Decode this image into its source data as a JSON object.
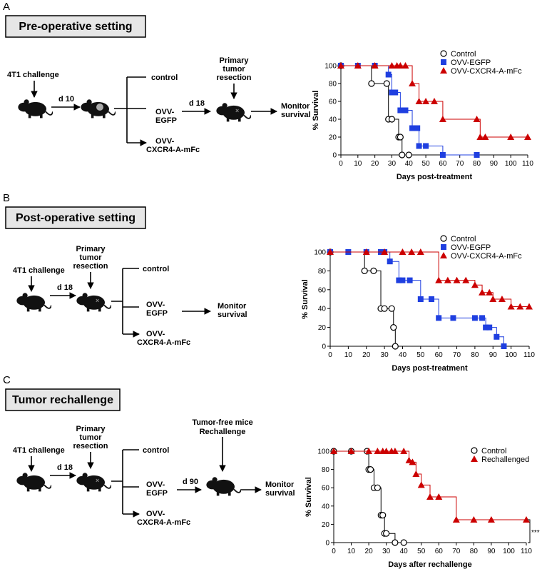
{
  "panels": [
    {
      "label": "A",
      "title": "Pre-operative setting",
      "challenge": "4T1 challenge",
      "interval1": "d 10",
      "arms": [
        [
          "control"
        ],
        [
          "OVV-",
          "EGFP"
        ],
        [
          "OVV-",
          "CXCR4-A-mFc"
        ]
      ],
      "interval2": "d 18",
      "resection": [
        "Primary",
        "tumor",
        "resection"
      ],
      "outcome": [
        "Monitor",
        "survival"
      ]
    },
    {
      "label": "B",
      "title": "Post-operative setting",
      "challenge": "4T1 challenge",
      "interval1": "d 18",
      "resection": [
        "Primary",
        "tumor",
        "resection"
      ],
      "arms": [
        [
          "control"
        ],
        [
          "OVV-",
          "EGFP"
        ],
        [
          "OVV-",
          "CXCR4-A-mFc"
        ]
      ],
      "outcome": [
        "Monitor",
        "survival"
      ]
    },
    {
      "label": "C",
      "title": "Tumor rechallenge",
      "challenge": "4T1 challenge",
      "interval1": "d 18",
      "resection": [
        "Primary",
        "tumor",
        "resection"
      ],
      "arms": [
        [
          "control"
        ],
        [
          "OVV-",
          "EGFP"
        ],
        [
          "OVV-",
          "CXCR4-A-mFc"
        ]
      ],
      "interval2": "d 90",
      "rechallenge": [
        "Tumor-free mice",
        "Rechallenge"
      ],
      "outcome": [
        "Monitor",
        "survival"
      ]
    }
  ],
  "chart_data": [
    {
      "type": "line",
      "step": true,
      "xlabel": "Days post-treatment",
      "ylabel": "% Survival",
      "xlim": [
        0,
        110
      ],
      "xticks": [
        0,
        10,
        20,
        30,
        40,
        50,
        60,
        70,
        80,
        90,
        100,
        110
      ],
      "ylim": [
        0,
        100
      ],
      "yticks": [
        0,
        20,
        40,
        60,
        80,
        100
      ],
      "series": [
        {
          "name": "Control",
          "color": "#000000",
          "marker": "circle",
          "x": [
            0,
            18,
            27,
            28,
            30,
            34,
            35,
            36,
            40
          ],
          "values": [
            100,
            80,
            80,
            40,
            40,
            20,
            20,
            0,
            0
          ]
        },
        {
          "name": "OVV-EGFP",
          "color": "#1f3fe0",
          "marker": "square",
          "x": [
            0,
            10,
            20,
            28,
            30,
            32,
            35,
            38,
            42,
            45,
            46,
            50,
            60,
            80
          ],
          "values": [
            100,
            100,
            100,
            90,
            70,
            70,
            50,
            50,
            30,
            30,
            10,
            10,
            0,
            0
          ]
        },
        {
          "name": "OVV-CXCR4-A-mFc",
          "color": "#cc0000",
          "marker": "triangle",
          "x": [
            0,
            10,
            20,
            30,
            33,
            35,
            38,
            42,
            46,
            50,
            55,
            60,
            80,
            82,
            85,
            100,
            110
          ],
          "values": [
            100,
            100,
            100,
            100,
            100,
            100,
            100,
            80,
            60,
            60,
            60,
            40,
            40,
            20,
            20,
            20,
            20
          ]
        }
      ]
    },
    {
      "type": "line",
      "step": true,
      "xlabel": "Days post-treatment",
      "ylabel": "% Survival",
      "xlim": [
        0,
        110
      ],
      "xticks": [
        0,
        10,
        20,
        30,
        40,
        50,
        60,
        70,
        80,
        90,
        100,
        110
      ],
      "ylim": [
        0,
        100
      ],
      "yticks": [
        0,
        20,
        40,
        60,
        80,
        100
      ],
      "series": [
        {
          "name": "Control",
          "color": "#000000",
          "marker": "circle",
          "x": [
            0,
            19,
            24,
            28,
            30,
            34,
            35,
            36
          ],
          "values": [
            100,
            80,
            80,
            40,
            40,
            40,
            20,
            0
          ]
        },
        {
          "name": "OVV-EGFP",
          "color": "#1f3fe0",
          "marker": "square",
          "x": [
            0,
            10,
            20,
            28,
            30,
            33,
            38,
            40,
            44,
            50,
            56,
            60,
            68,
            80,
            84,
            86,
            88,
            92,
            96
          ],
          "values": [
            100,
            100,
            100,
            100,
            100,
            90,
            70,
            70,
            70,
            50,
            50,
            30,
            30,
            30,
            30,
            20,
            20,
            10,
            0
          ]
        },
        {
          "name": "OVV-CXCR4-A-mFc",
          "color": "#cc0000",
          "marker": "triangle",
          "x": [
            0,
            20,
            30,
            40,
            45,
            50,
            60,
            65,
            70,
            75,
            80,
            84,
            88,
            90,
            95,
            100,
            105,
            110
          ],
          "values": [
            100,
            100,
            100,
            100,
            100,
            100,
            70,
            70,
            70,
            70,
            65,
            57,
            57,
            50,
            50,
            42,
            42,
            42
          ]
        }
      ]
    },
    {
      "type": "line",
      "step": true,
      "xlabel": "Days after rechallenge",
      "ylabel": "% Survival",
      "xlim": [
        0,
        110
      ],
      "xticks": [
        0,
        10,
        20,
        30,
        40,
        50,
        60,
        70,
        80,
        90,
        100,
        110
      ],
      "ylim": [
        0,
        100
      ],
      "yticks": [
        0,
        20,
        40,
        60,
        80,
        100
      ],
      "annotation": "***",
      "series": [
        {
          "name": "Control",
          "color": "#000000",
          "marker": "circle",
          "x": [
            0,
            10,
            19,
            20,
            21,
            23,
            25,
            27,
            28,
            29,
            30,
            35,
            40
          ],
          "values": [
            100,
            100,
            100,
            80,
            80,
            60,
            60,
            30,
            30,
            10,
            10,
            0,
            0
          ]
        },
        {
          "name": "Rechallenged",
          "color": "#cc0000",
          "marker": "triangle",
          "x": [
            0,
            10,
            20,
            25,
            28,
            30,
            33,
            35,
            40,
            43,
            45,
            47,
            50,
            55,
            60,
            70,
            80,
            90,
            110
          ],
          "values": [
            100,
            100,
            100,
            100,
            100,
            100,
            100,
            100,
            100,
            90,
            88,
            75,
            63,
            50,
            50,
            25,
            25,
            25,
            25
          ]
        }
      ]
    }
  ]
}
